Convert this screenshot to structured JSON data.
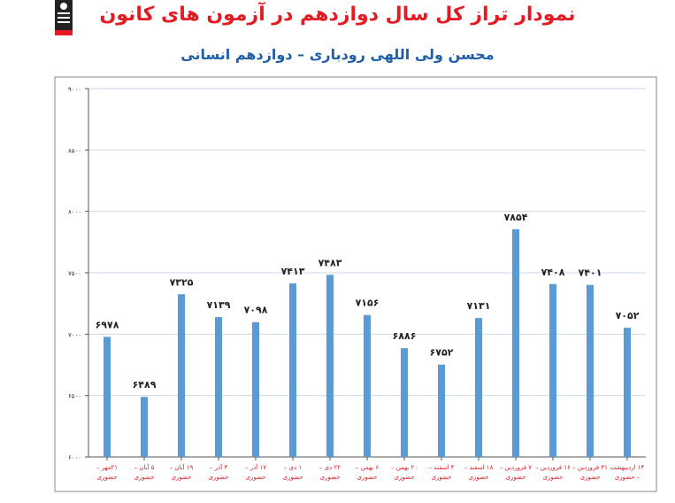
{
  "title": "نمودار تراز کل سال دوازدهم در آزمون های کانون",
  "subtitle": "محسن ولی اللهی رودباری – دوازدهم انسانی",
  "logo": {
    "icon": "school-logo-icon",
    "colors": [
      "#222222",
      "#e31b23"
    ]
  },
  "chart_data": {
    "type": "bar",
    "categories": [
      [
        "۲۱مهر –",
        "حضوری"
      ],
      [
        "۵ آبان –",
        "حضوری"
      ],
      [
        "۱۹ آبان –",
        "حضوری"
      ],
      [
        "۳ آذر –",
        "حضوری"
      ],
      [
        "۱۷ آذر –",
        "حضوری"
      ],
      [
        "۱ دی –",
        "حضوری"
      ],
      [
        "۲۲ دی –",
        "حضوری"
      ],
      [
        "۶ بهمن –",
        "حضوری"
      ],
      [
        "۲۰ بهمن –",
        "حضوری"
      ],
      [
        "۴ اسفند –",
        "حضوری"
      ],
      [
        "۱۸ اسفند –",
        "حضوری"
      ],
      [
        "۷ فروردین –",
        "حضوری"
      ],
      [
        "۱۶ فروردین –",
        "حضوری"
      ],
      [
        "۳۱ فروردین –",
        "حضوری"
      ],
      [
        "۱۴ اردیبهشت",
        "– حضوری"
      ]
    ],
    "values": [
      6978,
      6489,
      7325,
      7139,
      7098,
      7413,
      7483,
      7156,
      6886,
      6752,
      7131,
      7854,
      7408,
      7401,
      7052
    ],
    "value_labels": [
      "۶۹۷۸",
      "۶۴۸۹",
      "۷۳۲۵",
      "۷۱۳۹",
      "۷۰۹۸",
      "۷۴۱۳",
      "۷۴۸۳",
      "۷۱۵۶",
      "۶۸۸۶",
      "۶۷۵۲",
      "۷۱۳۱",
      "۷۸۵۴",
      "۷۴۰۸",
      "۷۴۰۱",
      "۷۰۵۲"
    ],
    "yticks": [
      6000,
      6500,
      7000,
      7500,
      8000,
      8500,
      9000
    ],
    "ytick_labels": [
      "۶۰۰۰",
      "۶۵۰۰",
      "۷۰۰۰",
      "۷۵۰۰",
      "۸۰۰۰",
      "۸۵۰۰",
      "۹۰۰۰"
    ],
    "ylim": [
      6000,
      9000
    ],
    "grid": true,
    "colors": {
      "bar": "#5b9bd5",
      "grid": "#c9d9ec",
      "axis": "#555555",
      "xlabel": "#e31b23",
      "frame": "#888888"
    }
  }
}
